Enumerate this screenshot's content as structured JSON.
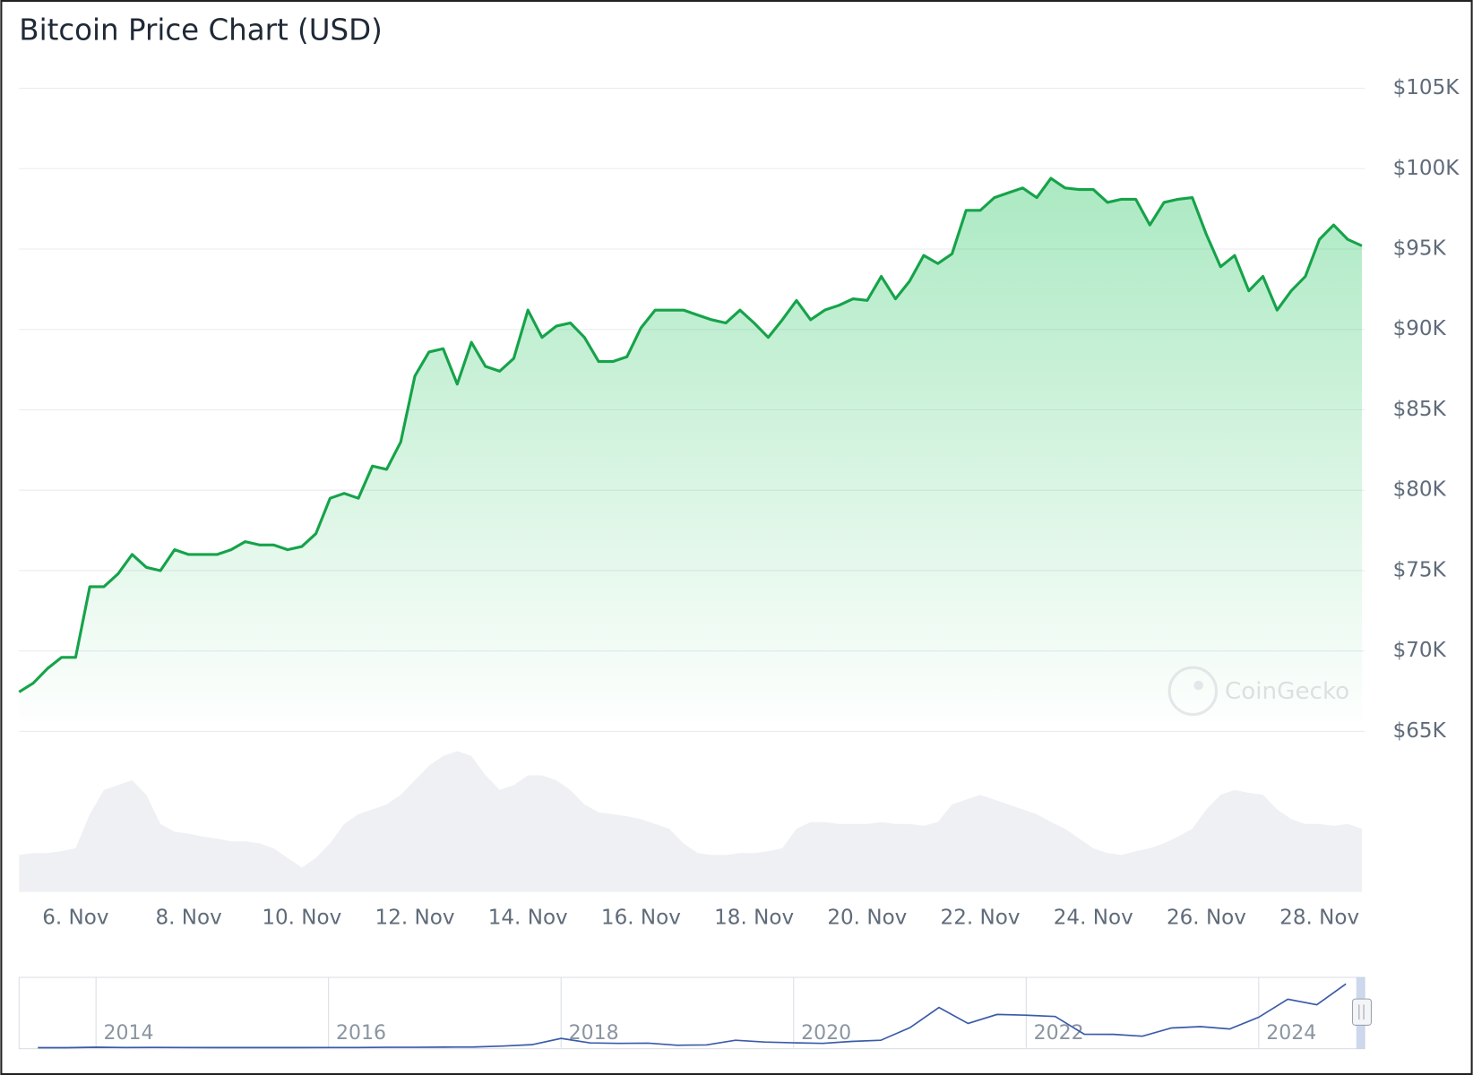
{
  "chart_data": {
    "type": "line",
    "title": "Bitcoin Price Chart (USD)",
    "watermark": "CoinGecko",
    "color": "#16a34a",
    "categories": [
      null,
      null,
      null,
      null,
      "6. Nov",
      null,
      null,
      null,
      null,
      null,
      null,
      null,
      "8. Nov",
      null,
      null,
      null,
      null,
      null,
      null,
      null,
      "10. Nov",
      null,
      null,
      null,
      null,
      null,
      null,
      null,
      "12. Nov",
      null,
      null,
      null,
      null,
      null,
      null,
      null,
      "14. Nov",
      null,
      null,
      null,
      null,
      null,
      null,
      null,
      "16. Nov",
      null,
      null,
      null,
      null,
      null,
      null,
      null,
      "18. Nov",
      null,
      null,
      null,
      null,
      null,
      null,
      null,
      "20. Nov",
      null,
      null,
      null,
      null,
      null,
      null,
      null,
      "22. Nov",
      null,
      null,
      null,
      null,
      null,
      null,
      null,
      "24. Nov",
      null,
      null,
      null,
      null,
      null,
      null,
      null,
      "26. Nov",
      null,
      null,
      null,
      null,
      null,
      null,
      null,
      "28. Nov",
      null,
      null,
      null
    ],
    "values": [
      67450,
      68000,
      68900,
      69600,
      69600,
      74000,
      74000,
      74800,
      76000,
      75200,
      75000,
      76300,
      76000,
      76000,
      76000,
      76300,
      76800,
      76600,
      76600,
      76300,
      76500,
      77300,
      79500,
      79800,
      79500,
      81500,
      81300,
      83000,
      87100,
      88600,
      88800,
      86600,
      89200,
      87700,
      87400,
      88200,
      91200,
      89500,
      90200,
      90400,
      89500,
      88000,
      88000,
      88300,
      90100,
      91200,
      91200,
      91200,
      90900,
      90600,
      90400,
      91200,
      90400,
      89500,
      90600,
      91800,
      90600,
      91200,
      91500,
      91900,
      91800,
      93300,
      91900,
      93000,
      94600,
      94100,
      94700,
      97400,
      97400,
      98200,
      98500,
      98800,
      98200,
      99400,
      98800,
      98700,
      98700,
      97900,
      98100,
      98100,
      96500,
      97900,
      98100,
      98200,
      95900,
      93900,
      94600,
      92400,
      93300,
      91200,
      92400,
      93300,
      95600,
      96500,
      95600,
      95200
    ],
    "ylim": [
      65000,
      105000
    ],
    "yticks": [
      {
        "value": 65000,
        "label": "$65K"
      },
      {
        "value": 70000,
        "label": "$70K"
      },
      {
        "value": 75000,
        "label": "$75K"
      },
      {
        "value": 80000,
        "label": "$80K"
      },
      {
        "value": 85000,
        "label": "$85K"
      },
      {
        "value": 90000,
        "label": "$90K"
      },
      {
        "value": 95000,
        "label": "$95K"
      },
      {
        "value": 100000,
        "label": "$100K"
      },
      {
        "value": 105000,
        "label": "$105K"
      }
    ],
    "grid": true,
    "volume": {
      "color": "#eef0f3",
      "values": [
        38,
        40,
        40,
        42,
        45,
        80,
        105,
        110,
        115,
        100,
        70,
        62,
        60,
        57,
        55,
        52,
        52,
        50,
        45,
        35,
        25,
        35,
        50,
        70,
        80,
        85,
        90,
        100,
        115,
        130,
        140,
        145,
        140,
        120,
        105,
        110,
        120,
        120,
        115,
        105,
        90,
        82,
        80,
        78,
        75,
        70,
        65,
        50,
        40,
        38,
        38,
        40,
        40,
        42,
        45,
        65,
        72,
        72,
        70,
        70,
        70,
        72,
        70,
        70,
        68,
        72,
        90,
        95,
        100,
        95,
        90,
        85,
        80,
        72,
        65,
        55,
        45,
        40,
        38,
        42,
        45,
        50,
        57,
        65,
        85,
        100,
        105,
        102,
        100,
        85,
        75,
        70,
        70,
        68,
        70,
        65
      ]
    },
    "navigator": {
      "color": "#3b5ba9",
      "categories": [
        null,
        null,
        "2014",
        null,
        null,
        null,
        null,
        null,
        null,
        null,
        "2016",
        null,
        null,
        null,
        null,
        null,
        null,
        null,
        "2018",
        null,
        null,
        null,
        null,
        null,
        null,
        null,
        "2020",
        null,
        null,
        null,
        null,
        null,
        null,
        null,
        "2022",
        null,
        null,
        null,
        null,
        null,
        null,
        null,
        "2024",
        null,
        null,
        null
      ],
      "values": [
        100,
        200,
        800,
        450,
        600,
        380,
        310,
        240,
        260,
        240,
        430,
        420,
        670,
        610,
        1000,
        1100,
        2500,
        4400,
        13500,
        7000,
        6400,
        6600,
        3700,
        4100,
        10800,
        8300,
        7200,
        6400,
        9200,
        10800,
        29000,
        58000,
        35000,
        48000,
        47000,
        45000,
        19500,
        19400,
        16600,
        28500,
        30500,
        27000,
        44000,
        70000,
        62000,
        92000
      ]
    }
  }
}
